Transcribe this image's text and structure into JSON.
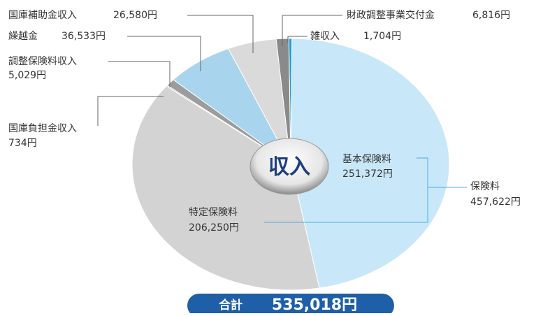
{
  "chart_data": {
    "type": "pie",
    "categories": [
      "雑収入",
      "基本保険料",
      "特定保険料",
      "国庫負担金収入",
      "調整保険料収入",
      "繰越金",
      "国庫補助金収入",
      "財政調整事業交付金"
    ],
    "values": [
      1704,
      251372,
      206250,
      734,
      5029,
      36533,
      26580,
      6816
    ],
    "value_labels": [
      "1,704円",
      "251,372円",
      "206,250円",
      "734円",
      "5,029円",
      "36,533円",
      "26,580円",
      "6,816円"
    ],
    "colors": [
      "#1aa0dc",
      "#c8e7f8",
      "#d3d3d3",
      "#b0b0b0",
      "#9c9c9c",
      "#a8d4ee",
      "#dadada",
      "#8a8a8a"
    ],
    "center_label": "収入",
    "annotations": [
      {
        "label": "保険料",
        "value_label": "457,622円"
      }
    ],
    "total": {
      "label": "合計",
      "value_label": "535,018円"
    }
  }
}
